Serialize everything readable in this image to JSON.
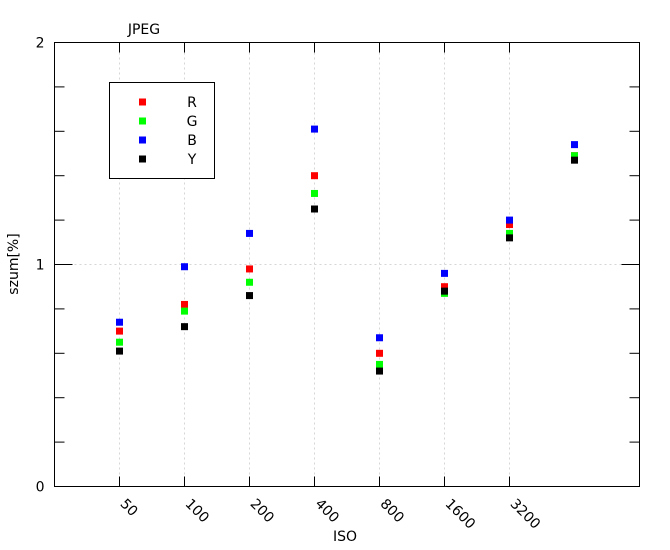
{
  "chart_data": {
    "type": "scatter",
    "title": "JPEG",
    "xlabel": "ISO",
    "ylabel": "szum[%]",
    "ylim": [
      0,
      2
    ],
    "xlim": [
      0,
      9
    ],
    "categories": [
      "50",
      "100",
      "200",
      "400",
      "800",
      "1600",
      "3200",
      ""
    ],
    "yticks": [
      "0",
      "1",
      "2"
    ],
    "grid": true,
    "legend_position": "top-left",
    "series": [
      {
        "name": "R",
        "color": "#ff0000",
        "values": [
          0.7,
          0.82,
          0.98,
          1.4,
          0.6,
          0.9,
          1.18,
          1.49
        ]
      },
      {
        "name": "G",
        "color": "#00ff00",
        "values": [
          0.65,
          0.79,
          0.92,
          1.32,
          0.55,
          0.87,
          1.14,
          1.49
        ]
      },
      {
        "name": "B",
        "color": "#0000ff",
        "values": [
          0.74,
          0.99,
          1.14,
          1.61,
          0.67,
          0.96,
          1.2,
          1.54
        ]
      },
      {
        "name": "Y",
        "color": "#000000",
        "values": [
          0.61,
          0.72,
          0.86,
          1.25,
          0.52,
          0.88,
          1.12,
          1.47
        ]
      }
    ]
  }
}
